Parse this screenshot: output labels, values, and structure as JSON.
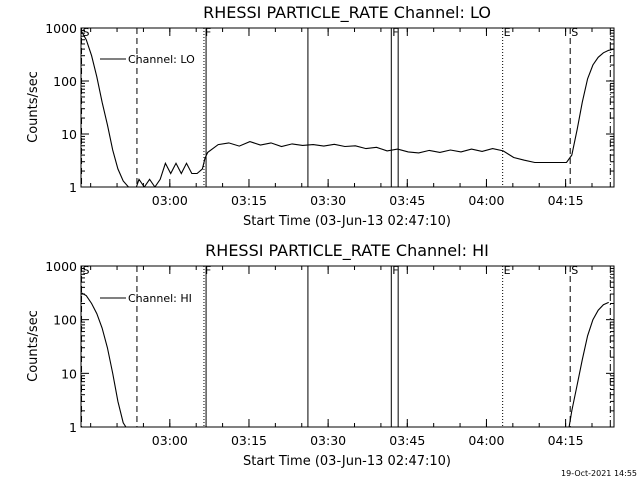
{
  "chart_data": [
    {
      "type": "line",
      "title": "RHESSI PARTICLE_RATE Channel: LO",
      "xlabel": "Start Time (03-Jun-13 02:47:10)",
      "ylabel": "Counts/sec",
      "yscale": "log",
      "ylim": [
        1,
        1000
      ],
      "xlim": [
        -4,
        97
      ],
      "x_units": "minutes after 02:47:10",
      "x_ticks": [
        {
          "label": "03:00",
          "x": 12.83
        },
        {
          "label": "03:15",
          "x": 27.83
        },
        {
          "label": "03:30",
          "x": 42.83
        },
        {
          "label": "03:45",
          "x": 57.83
        },
        {
          "label": "04:00",
          "x": 72.83
        },
        {
          "label": "04:15",
          "x": 87.83
        }
      ],
      "y_ticks": [
        {
          "label": "1",
          "y": 1
        },
        {
          "label": "10",
          "y": 10
        },
        {
          "label": "100",
          "y": 100
        },
        {
          "label": "1000",
          "y": 1000
        }
      ],
      "legend": {
        "label": "Channel: LO",
        "placement": "top-left"
      },
      "markers": [
        {
          "x": -3.9,
          "style": "dashed",
          "label": "S"
        },
        {
          "x": 6.6,
          "style": "dashed",
          "label": ""
        },
        {
          "x": 19.3,
          "style": "dotted",
          "label": "F"
        },
        {
          "x": 19.7,
          "style": "solid",
          "label": ""
        },
        {
          "x": 39.0,
          "style": "solid",
          "label": ""
        },
        {
          "x": 54.8,
          "style": "solid",
          "label": "F"
        },
        {
          "x": 56.1,
          "style": "solid",
          "label": ""
        },
        {
          "x": 75.9,
          "style": "dotted",
          "label": "E"
        },
        {
          "x": 88.7,
          "style": "dashed",
          "label": "S"
        },
        {
          "x": 96.3,
          "style": "dashdot",
          "label": ""
        }
      ],
      "series": [
        {
          "name": "Channel: LO",
          "x": [
            -4,
            -3,
            -2,
            -1,
            0,
            1,
            2,
            3,
            4,
            5,
            6,
            6.5,
            7,
            8,
            9,
            10,
            11,
            12,
            13,
            14,
            15,
            16,
            17,
            18,
            19,
            19.5,
            20,
            22,
            24,
            26,
            28,
            30,
            32,
            34,
            36,
            38,
            40,
            42,
            44,
            46,
            48,
            50,
            52,
            54,
            56,
            58,
            60,
            62,
            64,
            66,
            68,
            70,
            72,
            74,
            76,
            78,
            80,
            82,
            84,
            86,
            88,
            89,
            90,
            91,
            92,
            93,
            94,
            95,
            96,
            97
          ],
          "y": [
            900,
            600,
            300,
            120,
            40,
            15,
            5,
            2.2,
            1.3,
            1,
            1,
            1,
            1.4,
            1,
            1.4,
            1,
            1.4,
            2.8,
            1.8,
            2.8,
            1.8,
            2.8,
            1.8,
            1.8,
            2.2,
            3.5,
            4.5,
            6.3,
            6.8,
            5.9,
            7.2,
            6.2,
            6.8,
            5.8,
            6.5,
            6.1,
            6.3,
            5.9,
            6.4,
            5.8,
            6.0,
            5.3,
            5.6,
            4.8,
            5.2,
            4.6,
            4.4,
            4.9,
            4.5,
            5.0,
            4.6,
            5.2,
            4.7,
            5.3,
            4.8,
            3.6,
            3.2,
            2.9,
            2.9,
            2.9,
            2.9,
            4,
            12,
            40,
            110,
            200,
            280,
            340,
            380,
            400
          ]
        }
      ]
    },
    {
      "type": "line",
      "title": "RHESSI PARTICLE_RATE Channel: HI",
      "xlabel": "Start Time (03-Jun-13 02:47:10)",
      "ylabel": "Counts/sec",
      "yscale": "log",
      "ylim": [
        1,
        1000
      ],
      "xlim": [
        -4,
        97
      ],
      "x_units": "minutes after 02:47:10",
      "x_ticks": [
        {
          "label": "03:00",
          "x": 12.83
        },
        {
          "label": "03:15",
          "x": 27.83
        },
        {
          "label": "03:30",
          "x": 42.83
        },
        {
          "label": "03:45",
          "x": 57.83
        },
        {
          "label": "04:00",
          "x": 72.83
        },
        {
          "label": "04:15",
          "x": 87.83
        }
      ],
      "y_ticks": [
        {
          "label": "1",
          "y": 1
        },
        {
          "label": "10",
          "y": 10
        },
        {
          "label": "100",
          "y": 100
        },
        {
          "label": "1000",
          "y": 1000
        }
      ],
      "legend": {
        "label": "Channel: HI",
        "placement": "top-left"
      },
      "markers": [
        {
          "x": -3.9,
          "style": "dashed",
          "label": "S"
        },
        {
          "x": 6.6,
          "style": "dashed",
          "label": ""
        },
        {
          "x": 19.3,
          "style": "dotted",
          "label": "F"
        },
        {
          "x": 19.7,
          "style": "solid",
          "label": ""
        },
        {
          "x": 39.0,
          "style": "solid",
          "label": ""
        },
        {
          "x": 54.8,
          "style": "solid",
          "label": "F"
        },
        {
          "x": 56.1,
          "style": "solid",
          "label": ""
        },
        {
          "x": 75.9,
          "style": "dotted",
          "label": "E"
        },
        {
          "x": 88.7,
          "style": "dashed",
          "label": "S"
        },
        {
          "x": 96.3,
          "style": "dashdot",
          "label": ""
        }
      ],
      "series": [
        {
          "name": "Channel: HI",
          "x": [
            -4,
            -3,
            -2,
            -1,
            0,
            1,
            2,
            3,
            4,
            4.5,
            88.5,
            89,
            90,
            91,
            92,
            93,
            94,
            95,
            96
          ],
          "y": [
            320,
            280,
            200,
            130,
            70,
            30,
            10,
            3,
            1.2,
            1,
            1,
            2,
            6,
            18,
            50,
            100,
            150,
            190,
            210
          ]
        }
      ]
    }
  ],
  "footer": {
    "timestamp": "19-Oct-2021 14:55"
  }
}
